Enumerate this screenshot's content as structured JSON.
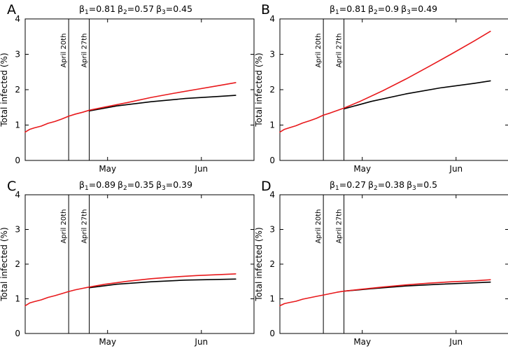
{
  "chart_data": [
    {
      "type": "line",
      "panel": "A",
      "beta_prefix": "β",
      "betas": [
        {
          "sub": "1",
          "eq": "=0.81"
        },
        {
          "sub": "2",
          "eq": "=0.57"
        },
        {
          "sub": "3",
          "eq": "=0.45"
        }
      ],
      "ylabel": "Total infected (%)",
      "ylim": [
        0,
        4
      ],
      "yticks": [
        "0",
        "1",
        "2",
        "3",
        "4"
      ],
      "xlim": [
        0,
        100
      ],
      "xticks": [
        {
          "label": "May",
          "x": 36
        },
        {
          "label": "Jun",
          "x": 77
        }
      ],
      "vlines": [
        {
          "label": "April 20th",
          "x": 19
        },
        {
          "label": "April 27th",
          "x": 28
        }
      ],
      "series": [
        {
          "name": "black",
          "color": "#000000",
          "points": [
            [
              28,
              1.4
            ],
            [
              40,
              1.54
            ],
            [
              55,
              1.66
            ],
            [
              70,
              1.75
            ],
            [
              85,
              1.81
            ],
            [
              92,
              1.84
            ]
          ]
        },
        {
          "name": "red",
          "color": "#e8191c",
          "points": [
            [
              0,
              0.8
            ],
            [
              2,
              0.88
            ],
            [
              4,
              0.92
            ],
            [
              7,
              0.97
            ],
            [
              10,
              1.05
            ],
            [
              13,
              1.1
            ],
            [
              16,
              1.17
            ],
            [
              19,
              1.25
            ],
            [
              22,
              1.31
            ],
            [
              25,
              1.36
            ],
            [
              28,
              1.42
            ],
            [
              35,
              1.51
            ],
            [
              45,
              1.64
            ],
            [
              55,
              1.78
            ],
            [
              65,
              1.9
            ],
            [
              75,
              2.01
            ],
            [
              85,
              2.12
            ],
            [
              92,
              2.2
            ]
          ]
        }
      ]
    },
    {
      "type": "line",
      "panel": "B",
      "beta_prefix": "β",
      "betas": [
        {
          "sub": "1",
          "eq": "=0.81"
        },
        {
          "sub": "2",
          "eq": "=0.9"
        },
        {
          "sub": "3",
          "eq": "=0.49"
        }
      ],
      "ylabel": "Total infected (%)",
      "ylim": [
        0,
        4
      ],
      "yticks": [
        "0",
        "1",
        "2",
        "3",
        "4"
      ],
      "xlim": [
        0,
        100
      ],
      "xticks": [
        {
          "label": "May",
          "x": 36
        },
        {
          "label": "Jun",
          "x": 77
        }
      ],
      "vlines": [
        {
          "label": "April 20th",
          "x": 19
        },
        {
          "label": "April 27th",
          "x": 28
        }
      ],
      "series": [
        {
          "name": "black",
          "color": "#000000",
          "points": [
            [
              28,
              1.46
            ],
            [
              40,
              1.67
            ],
            [
              55,
              1.88
            ],
            [
              70,
              2.05
            ],
            [
              85,
              2.18
            ],
            [
              92,
              2.25
            ]
          ]
        },
        {
          "name": "red",
          "color": "#e8191c",
          "points": [
            [
              0,
              0.8
            ],
            [
              2,
              0.88
            ],
            [
              4,
              0.92
            ],
            [
              7,
              0.98
            ],
            [
              10,
              1.06
            ],
            [
              13,
              1.12
            ],
            [
              16,
              1.19
            ],
            [
              19,
              1.28
            ],
            [
              22,
              1.34
            ],
            [
              25,
              1.41
            ],
            [
              28,
              1.48
            ],
            [
              35,
              1.67
            ],
            [
              45,
              1.97
            ],
            [
              55,
              2.3
            ],
            [
              65,
              2.65
            ],
            [
              75,
              3.01
            ],
            [
              85,
              3.38
            ],
            [
              92,
              3.65
            ]
          ]
        }
      ]
    },
    {
      "type": "line",
      "panel": "C",
      "beta_prefix": "β",
      "betas": [
        {
          "sub": "1",
          "eq": "=0.89"
        },
        {
          "sub": "2",
          "eq": "=0.35"
        },
        {
          "sub": "3",
          "eq": "=0.39"
        }
      ],
      "ylabel": "Total infected (%)",
      "ylim": [
        0,
        4
      ],
      "yticks": [
        "0",
        "1",
        "2",
        "3",
        "4"
      ],
      "xlim": [
        0,
        100
      ],
      "xticks": [
        {
          "label": "May",
          "x": 36
        },
        {
          "label": "Jun",
          "x": 77
        }
      ],
      "vlines": [
        {
          "label": "April 20th",
          "x": 19
        },
        {
          "label": "April 27th",
          "x": 28
        }
      ],
      "series": [
        {
          "name": "black",
          "color": "#000000",
          "points": [
            [
              28,
              1.32
            ],
            [
              40,
              1.42
            ],
            [
              55,
              1.49
            ],
            [
              70,
              1.54
            ],
            [
              85,
              1.56
            ],
            [
              92,
              1.57
            ]
          ]
        },
        {
          "name": "red",
          "color": "#e8191c",
          "points": [
            [
              0,
              0.8
            ],
            [
              2,
              0.88
            ],
            [
              4,
              0.92
            ],
            [
              7,
              0.97
            ],
            [
              10,
              1.04
            ],
            [
              13,
              1.09
            ],
            [
              16,
              1.15
            ],
            [
              19,
              1.21
            ],
            [
              22,
              1.26
            ],
            [
              25,
              1.3
            ],
            [
              28,
              1.34
            ],
            [
              35,
              1.42
            ],
            [
              45,
              1.51
            ],
            [
              55,
              1.58
            ],
            [
              65,
              1.63
            ],
            [
              75,
              1.67
            ],
            [
              85,
              1.7
            ],
            [
              92,
              1.72
            ]
          ]
        }
      ]
    },
    {
      "type": "line",
      "panel": "D",
      "beta_prefix": "β",
      "betas": [
        {
          "sub": "1",
          "eq": "=0.27"
        },
        {
          "sub": "2",
          "eq": "=0.38"
        },
        {
          "sub": "3",
          "eq": "=0.5"
        }
      ],
      "ylabel": "Total infected (%)",
      "ylim": [
        0,
        4
      ],
      "yticks": [
        "0",
        "1",
        "2",
        "3",
        "4"
      ],
      "xlim": [
        0,
        100
      ],
      "xticks": [
        {
          "label": "May",
          "x": 36
        },
        {
          "label": "Jun",
          "x": 77
        }
      ],
      "vlines": [
        {
          "label": "April 20th",
          "x": 19
        },
        {
          "label": "April 27th",
          "x": 28
        }
      ],
      "series": [
        {
          "name": "black",
          "color": "#000000",
          "points": [
            [
              28,
              1.22
            ],
            [
              40,
              1.29
            ],
            [
              55,
              1.37
            ],
            [
              70,
              1.42
            ],
            [
              85,
              1.46
            ],
            [
              92,
              1.48
            ]
          ]
        },
        {
          "name": "red",
          "color": "#e8191c",
          "points": [
            [
              0,
              0.8
            ],
            [
              2,
              0.86
            ],
            [
              4,
              0.89
            ],
            [
              7,
              0.93
            ],
            [
              10,
              0.99
            ],
            [
              13,
              1.03
            ],
            [
              16,
              1.07
            ],
            [
              19,
              1.11
            ],
            [
              22,
              1.15
            ],
            [
              25,
              1.19
            ],
            [
              28,
              1.22
            ],
            [
              35,
              1.27
            ],
            [
              45,
              1.34
            ],
            [
              55,
              1.4
            ],
            [
              65,
              1.45
            ],
            [
              75,
              1.49
            ],
            [
              85,
              1.52
            ],
            [
              92,
              1.55
            ]
          ]
        }
      ]
    }
  ]
}
